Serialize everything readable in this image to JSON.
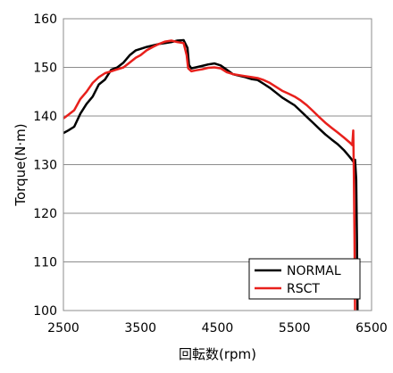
{
  "chart_data": {
    "type": "line",
    "xlabel": "回転数(rpm)",
    "ylabel": "Torque(N·m)",
    "xlim": [
      2500,
      6500
    ],
    "ylim": [
      100,
      160
    ],
    "xticks": [
      2500,
      3500,
      4500,
      5500,
      6500
    ],
    "yticks": [
      100,
      110,
      120,
      130,
      140,
      150,
      160
    ],
    "grid": "horizontal",
    "legend_position": "bottom-right",
    "series": [
      {
        "name": "NORMAL",
        "color": "#000000",
        "x": [
          2500,
          2560,
          2640,
          2720,
          2800,
          2880,
          2960,
          3040,
          3120,
          3200,
          3280,
          3360,
          3440,
          3500,
          3580,
          3660,
          3740,
          3820,
          3900,
          3980,
          4060,
          4110,
          4130,
          4160,
          4220,
          4300,
          4380,
          4460,
          4540,
          4620,
          4700,
          4780,
          4860,
          4940,
          5020,
          5100,
          5180,
          5260,
          5340,
          5420,
          5500,
          5580,
          5660,
          5740,
          5820,
          5900,
          5980,
          6060,
          6140,
          6220,
          6270,
          6285,
          6300,
          6310,
          6318
        ],
        "y": [
          136.5,
          137.0,
          137.8,
          140.5,
          142.5,
          144.0,
          146.5,
          147.5,
          149.5,
          150.0,
          151.0,
          152.5,
          153.5,
          153.8,
          154.2,
          154.5,
          154.8,
          155.0,
          155.2,
          155.5,
          155.6,
          154.0,
          150.5,
          149.8,
          150.0,
          150.3,
          150.6,
          150.8,
          150.4,
          149.5,
          148.6,
          148.3,
          148.0,
          147.6,
          147.4,
          146.6,
          145.8,
          144.8,
          143.8,
          143.0,
          142.2,
          141.0,
          139.8,
          138.6,
          137.4,
          136.2,
          135.2,
          134.2,
          133.0,
          131.5,
          130.5,
          131.0,
          127.0,
          115.0,
          100.0
        ]
      },
      {
        "name": "RSCT",
        "color": "#e8201c",
        "x": [
          2500,
          2560,
          2640,
          2720,
          2800,
          2880,
          2960,
          3040,
          3120,
          3200,
          3280,
          3360,
          3440,
          3500,
          3580,
          3660,
          3740,
          3820,
          3900,
          3980,
          4060,
          4100,
          4120,
          4160,
          4220,
          4300,
          4380,
          4460,
          4540,
          4620,
          4700,
          4780,
          4860,
          4940,
          5020,
          5100,
          5180,
          5260,
          5340,
          5420,
          5500,
          5580,
          5660,
          5740,
          5820,
          5900,
          5980,
          6060,
          6140,
          6220,
          6250,
          6262,
          6270,
          6278,
          6285
        ],
        "y": [
          139.5,
          140.2,
          141.2,
          143.5,
          145.0,
          146.8,
          148.0,
          148.8,
          149.2,
          149.6,
          150.0,
          151.0,
          152.0,
          152.5,
          153.5,
          154.2,
          154.8,
          155.3,
          155.5,
          155.2,
          155.0,
          152.5,
          149.8,
          149.2,
          149.4,
          149.6,
          149.9,
          150.0,
          149.8,
          149.0,
          148.6,
          148.4,
          148.2,
          148.0,
          147.8,
          147.4,
          146.8,
          146.0,
          145.2,
          144.6,
          144.0,
          143.2,
          142.2,
          141.0,
          139.8,
          138.6,
          137.6,
          136.6,
          135.6,
          134.5,
          134.0,
          137.0,
          128.0,
          115.0,
          100.0
        ]
      }
    ]
  }
}
